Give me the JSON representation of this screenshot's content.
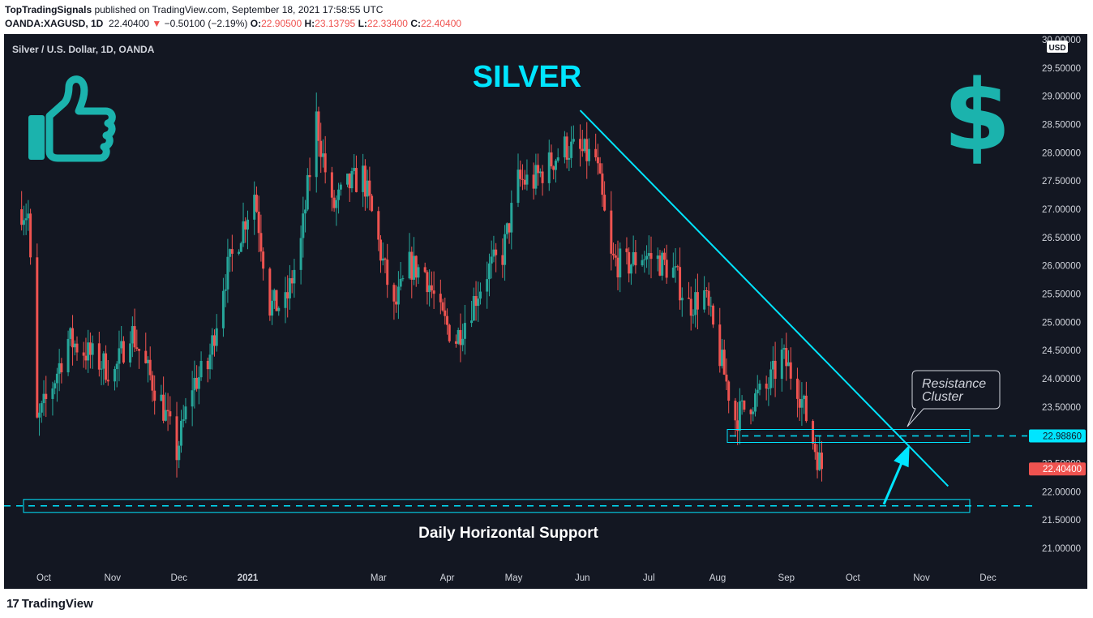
{
  "header": {
    "publisher": "TopTradingSignals",
    "published_text": " published on TradingView.com, September 18, 2021 17:58:55 UTC",
    "symbol": "OANDA:XAGUSD, 1D",
    "last": "22.40400",
    "change": "−0.50100 (−2.19%)",
    "open_label": "O:",
    "open": "22.90500",
    "high_label": "H:",
    "high": "23.13795",
    "low_label": "L:",
    "low": "22.33400",
    "close_label": "C:",
    "close": "22.40400"
  },
  "footer": {
    "logo": "17",
    "brand": "TradingView"
  },
  "colors": {
    "background": "#131722",
    "up": "#26a69a",
    "down": "#ef5350",
    "annotation": "#00e5ff",
    "thumb": "#1bb3ad"
  },
  "chart_data": {
    "type": "candlestick",
    "title": "SILVER",
    "series_label": "Silver / U.S. Dollar, 1D, OANDA",
    "currency": "USD",
    "ylim": [
      20.8,
      30.0
    ],
    "y_ticks": [
      "30.00000",
      "29.50000",
      "29.00000",
      "28.50000",
      "28.00000",
      "27.50000",
      "27.00000",
      "26.50000",
      "26.00000",
      "25.50000",
      "25.00000",
      "24.50000",
      "24.00000",
      "23.50000",
      "23.00000",
      "22.50000",
      "22.00000",
      "21.50000",
      "21.00000"
    ],
    "x_months": [
      "Oct",
      "Nov",
      "Dec",
      "2021",
      "Mar",
      "Apr",
      "May",
      "Jun",
      "Jul",
      "Aug",
      "Sep",
      "Oct",
      "Nov",
      "Dec"
    ],
    "price_path": [
      {
        "date": "2020-09-21",
        "close": 27.0
      },
      {
        "date": "2020-09-24",
        "close": 26.9
      },
      {
        "date": "2020-09-28",
        "close": 23.2
      },
      {
        "date": "2020-10-05",
        "close": 23.9
      },
      {
        "date": "2020-10-12",
        "close": 24.7
      },
      {
        "date": "2020-10-19",
        "close": 24.5
      },
      {
        "date": "2020-10-26",
        "close": 24.3
      },
      {
        "date": "2020-11-02",
        "close": 24.1
      },
      {
        "date": "2020-11-09",
        "close": 24.9
      },
      {
        "date": "2020-11-16",
        "close": 24.2
      },
      {
        "date": "2020-11-23",
        "close": 23.6
      },
      {
        "date": "2020-11-30",
        "close": 22.7
      },
      {
        "date": "2020-12-07",
        "close": 23.9
      },
      {
        "date": "2020-12-14",
        "close": 24.2
      },
      {
        "date": "2020-12-21",
        "close": 25.7
      },
      {
        "date": "2021-01-04",
        "close": 27.3
      },
      {
        "date": "2021-01-11",
        "close": 25.3
      },
      {
        "date": "2021-01-18",
        "close": 25.3
      },
      {
        "date": "2021-01-25",
        "close": 26.4
      },
      {
        "date": "2021-02-01",
        "close": 28.6
      },
      {
        "date": "2021-02-08",
        "close": 27.0
      },
      {
        "date": "2021-02-15",
        "close": 27.4
      },
      {
        "date": "2021-02-22",
        "close": 27.6
      },
      {
        "date": "2021-03-01",
        "close": 26.4
      },
      {
        "date": "2021-03-08",
        "close": 25.2
      },
      {
        "date": "2021-03-15",
        "close": 26.0
      },
      {
        "date": "2021-03-22",
        "close": 25.9
      },
      {
        "date": "2021-03-29",
        "close": 25.1
      },
      {
        "date": "2021-04-05",
        "close": 24.7
      },
      {
        "date": "2021-04-12",
        "close": 25.3
      },
      {
        "date": "2021-04-19",
        "close": 25.9
      },
      {
        "date": "2021-04-26",
        "close": 26.2
      },
      {
        "date": "2021-05-03",
        "close": 27.5
      },
      {
        "date": "2021-05-10",
        "close": 27.5
      },
      {
        "date": "2021-05-17",
        "close": 27.8
      },
      {
        "date": "2021-05-24",
        "close": 28.1
      },
      {
        "date": "2021-05-31",
        "close": 28.0
      },
      {
        "date": "2021-06-07",
        "close": 27.9
      },
      {
        "date": "2021-06-14",
        "close": 26.1
      },
      {
        "date": "2021-06-21",
        "close": 26.0
      },
      {
        "date": "2021-06-28",
        "close": 26.2
      },
      {
        "date": "2021-07-05",
        "close": 26.1
      },
      {
        "date": "2021-07-12",
        "close": 25.9
      },
      {
        "date": "2021-07-19",
        "close": 25.3
      },
      {
        "date": "2021-07-26",
        "close": 25.5
      },
      {
        "date": "2021-08-02",
        "close": 24.4
      },
      {
        "date": "2021-08-09",
        "close": 23.3
      },
      {
        "date": "2021-08-16",
        "close": 23.6
      },
      {
        "date": "2021-08-23",
        "close": 23.8
      },
      {
        "date": "2021-08-30",
        "close": 24.4
      },
      {
        "date": "2021-09-06",
        "close": 23.9
      },
      {
        "date": "2021-09-13",
        "close": 22.9
      },
      {
        "date": "2021-09-17",
        "close": 22.404
      }
    ],
    "price_tags": [
      {
        "value": 22.9886,
        "label": "22.98860",
        "kind": "resistance"
      },
      {
        "value": 22.404,
        "label": "22.40400",
        "kind": "last"
      }
    ],
    "annotations": {
      "resistance": "Resistance\nCluster",
      "resistance_line1": "Resistance",
      "resistance_line2": "Cluster",
      "support": "Daily Horizontal Support",
      "support_level": 21.75,
      "resistance_level": 22.9886,
      "trendline": [
        {
          "date": "2021-05-31",
          "value": 28.75
        },
        {
          "date": "2021-11-13",
          "value": 22.1
        }
      ],
      "arrow": [
        {
          "date": "2021-10-15",
          "value": 21.78
        },
        {
          "date": "2021-10-26",
          "value": 22.78
        }
      ]
    },
    "icons": [
      "thumbs-up-icon",
      "dollar-sign-icon"
    ]
  }
}
